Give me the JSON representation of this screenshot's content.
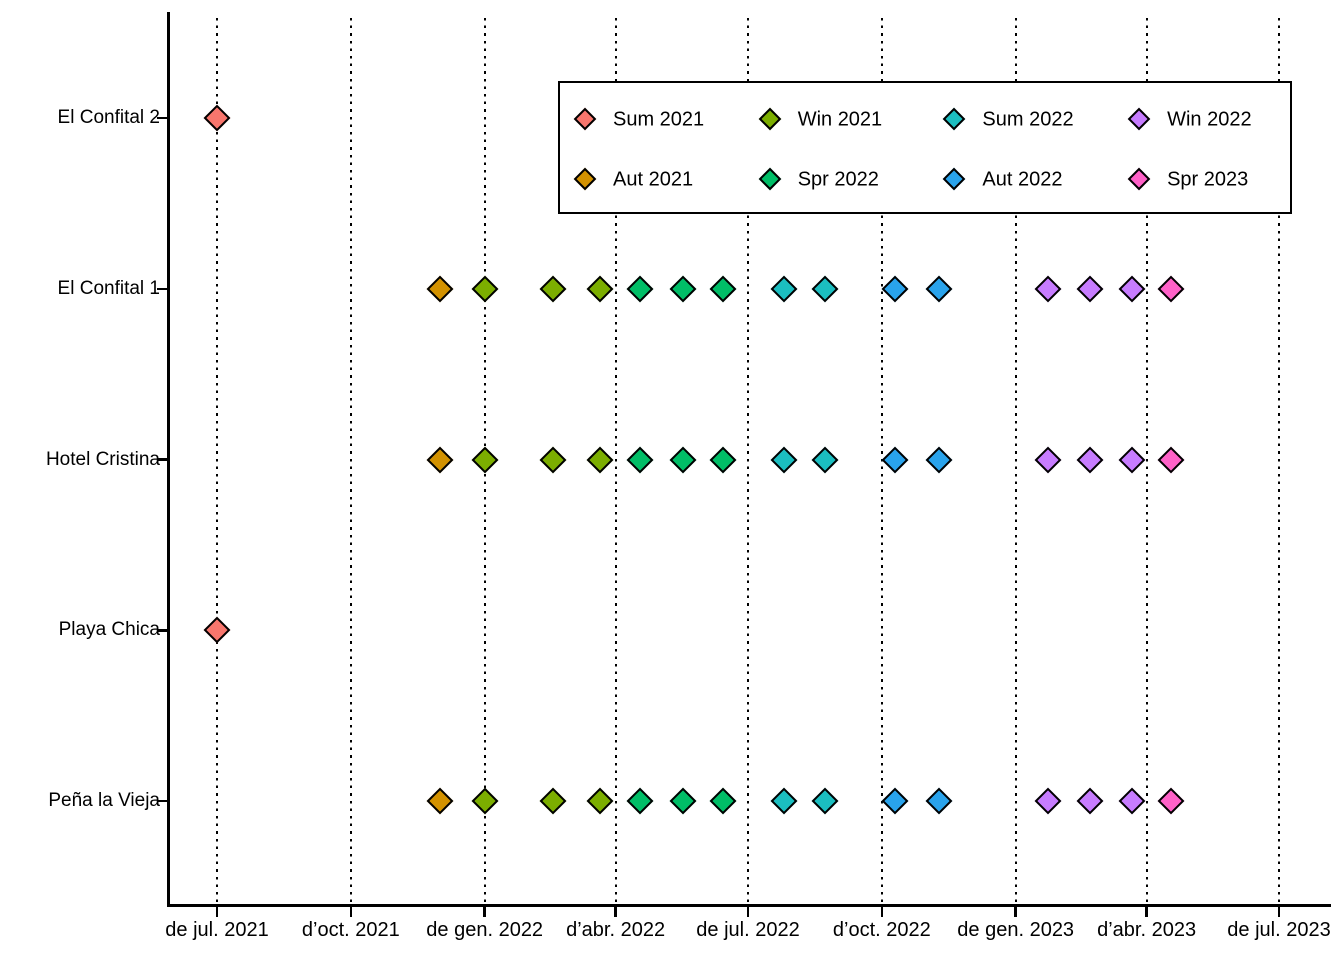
{
  "chart_data": {
    "type": "scatter",
    "title": "",
    "description": "Sampling-date timeline per beach site; diamond markers coloured by season",
    "x_axis": {
      "label": "",
      "t_unit": "days since 2021-07-01 (estimated from gridlines)",
      "ticks": [
        {
          "label": "de jul. 2021",
          "t": 0
        },
        {
          "label": "d’oct. 2021",
          "t": 92
        },
        {
          "label": "de gen. 2022",
          "t": 184
        },
        {
          "label": "d’abr. 2022",
          "t": 274
        },
        {
          "label": "de jul. 2022",
          "t": 365
        },
        {
          "label": "d’oct. 2022",
          "t": 457
        },
        {
          "label": "de gen. 2023",
          "t": 549
        },
        {
          "label": "d’abr. 2023",
          "t": 639
        },
        {
          "label": "de jul. 2023",
          "t": 730
        }
      ],
      "grid": "dotted-vertical"
    },
    "y_axis": {
      "categories": [
        "El Confital 2",
        "El Confital 1",
        "Hotel Cristina",
        "Playa Chica",
        "Peña la Vieja"
      ],
      "grid": "none"
    },
    "seasons": {
      "Sum 2021": "#F8766D",
      "Aut 2021": "#D39200",
      "Win 2021": "#7CAE00",
      "Spr 2022": "#00BE67",
      "Sum 2022": "#1BBEC0",
      "Aut 2022": "#29A3EC",
      "Win 2022": "#C77CFF",
      "Spr 2023": "#FF61C8"
    },
    "legend": {
      "position": "top-inset",
      "rows": [
        [
          "Sum 2021",
          "Win 2021",
          "Sum 2022",
          "Win 2022"
        ],
        [
          "Aut 2021",
          "Spr 2022",
          "Aut 2022",
          "Spr 2023"
        ]
      ]
    },
    "sites": [
      {
        "name": "El Confital 2",
        "points": [
          {
            "season": "Sum 2021",
            "t": 0,
            "date_est": "2021-07-01"
          }
        ]
      },
      {
        "name": "El Confital 1",
        "points": [
          {
            "season": "Aut 2021",
            "t": 153,
            "date_est": "2021-12-01"
          },
          {
            "season": "Win 2021",
            "t": 184,
            "date_est": "2022-01-01"
          },
          {
            "season": "Win 2021",
            "t": 231,
            "date_est": "2022-02-17"
          },
          {
            "season": "Win 2021",
            "t": 263,
            "date_est": "2022-03-21"
          },
          {
            "season": "Spr 2022",
            "t": 291,
            "date_est": "2022-04-18"
          },
          {
            "season": "Spr 2022",
            "t": 320,
            "date_est": "2022-05-17"
          },
          {
            "season": "Spr 2022",
            "t": 348,
            "date_est": "2022-06-14"
          },
          {
            "season": "Sum 2022",
            "t": 390,
            "date_est": "2022-07-26"
          },
          {
            "season": "Sum 2022",
            "t": 418,
            "date_est": "2022-08-23"
          },
          {
            "season": "Aut 2022",
            "t": 466,
            "date_est": "2022-10-10"
          },
          {
            "season": "Aut 2022",
            "t": 496,
            "date_est": "2022-11-09"
          },
          {
            "season": "Win 2022",
            "t": 571,
            "date_est": "2023-01-23"
          },
          {
            "season": "Win 2022",
            "t": 600,
            "date_est": "2023-02-21"
          },
          {
            "season": "Win 2022",
            "t": 629,
            "date_est": "2023-03-22"
          },
          {
            "season": "Spr 2023",
            "t": 656,
            "date_est": "2023-04-18"
          }
        ]
      },
      {
        "name": "Hotel Cristina",
        "points": [
          {
            "season": "Aut 2021",
            "t": 153,
            "date_est": "2021-12-01"
          },
          {
            "season": "Win 2021",
            "t": 184,
            "date_est": "2022-01-01"
          },
          {
            "season": "Win 2021",
            "t": 231,
            "date_est": "2022-02-17"
          },
          {
            "season": "Win 2021",
            "t": 263,
            "date_est": "2022-03-21"
          },
          {
            "season": "Spr 2022",
            "t": 291,
            "date_est": "2022-04-18"
          },
          {
            "season": "Spr 2022",
            "t": 320,
            "date_est": "2022-05-17"
          },
          {
            "season": "Spr 2022",
            "t": 348,
            "date_est": "2022-06-14"
          },
          {
            "season": "Sum 2022",
            "t": 390,
            "date_est": "2022-07-26"
          },
          {
            "season": "Sum 2022",
            "t": 418,
            "date_est": "2022-08-23"
          },
          {
            "season": "Aut 2022",
            "t": 466,
            "date_est": "2022-10-10"
          },
          {
            "season": "Aut 2022",
            "t": 496,
            "date_est": "2022-11-09"
          },
          {
            "season": "Win 2022",
            "t": 571,
            "date_est": "2023-01-23"
          },
          {
            "season": "Win 2022",
            "t": 600,
            "date_est": "2023-02-21"
          },
          {
            "season": "Win 2022",
            "t": 629,
            "date_est": "2023-03-22"
          },
          {
            "season": "Spr 2023",
            "t": 656,
            "date_est": "2023-04-18"
          }
        ]
      },
      {
        "name": "Playa Chica",
        "points": [
          {
            "season": "Sum 2021",
            "t": 0,
            "date_est": "2021-07-01"
          }
        ]
      },
      {
        "name": "Peña la Vieja",
        "points": [
          {
            "season": "Aut 2021",
            "t": 153,
            "date_est": "2021-12-01"
          },
          {
            "season": "Win 2021",
            "t": 184,
            "date_est": "2022-01-01"
          },
          {
            "season": "Win 2021",
            "t": 231,
            "date_est": "2022-02-17"
          },
          {
            "season": "Win 2021",
            "t": 263,
            "date_est": "2022-03-21"
          },
          {
            "season": "Spr 2022",
            "t": 291,
            "date_est": "2022-04-18"
          },
          {
            "season": "Spr 2022",
            "t": 320,
            "date_est": "2022-05-17"
          },
          {
            "season": "Spr 2022",
            "t": 348,
            "date_est": "2022-06-14"
          },
          {
            "season": "Sum 2022",
            "t": 390,
            "date_est": "2022-07-26"
          },
          {
            "season": "Sum 2022",
            "t": 418,
            "date_est": "2022-08-23"
          },
          {
            "season": "Aut 2022",
            "t": 466,
            "date_est": "2022-10-10"
          },
          {
            "season": "Aut 2022",
            "t": 496,
            "date_est": "2022-11-09"
          },
          {
            "season": "Win 2022",
            "t": 571,
            "date_est": "2023-01-23"
          },
          {
            "season": "Win 2022",
            "t": 600,
            "date_est": "2023-02-21"
          },
          {
            "season": "Win 2022",
            "t": 629,
            "date_est": "2023-03-22"
          },
          {
            "season": "Spr 2023",
            "t": 656,
            "date_est": "2023-04-18"
          }
        ]
      }
    ],
    "marker": {
      "shape": "diamond",
      "outline": "#000000"
    },
    "colors": {
      "background": "#FFFFFF",
      "axis": "#000000",
      "text": "#000000"
    }
  }
}
